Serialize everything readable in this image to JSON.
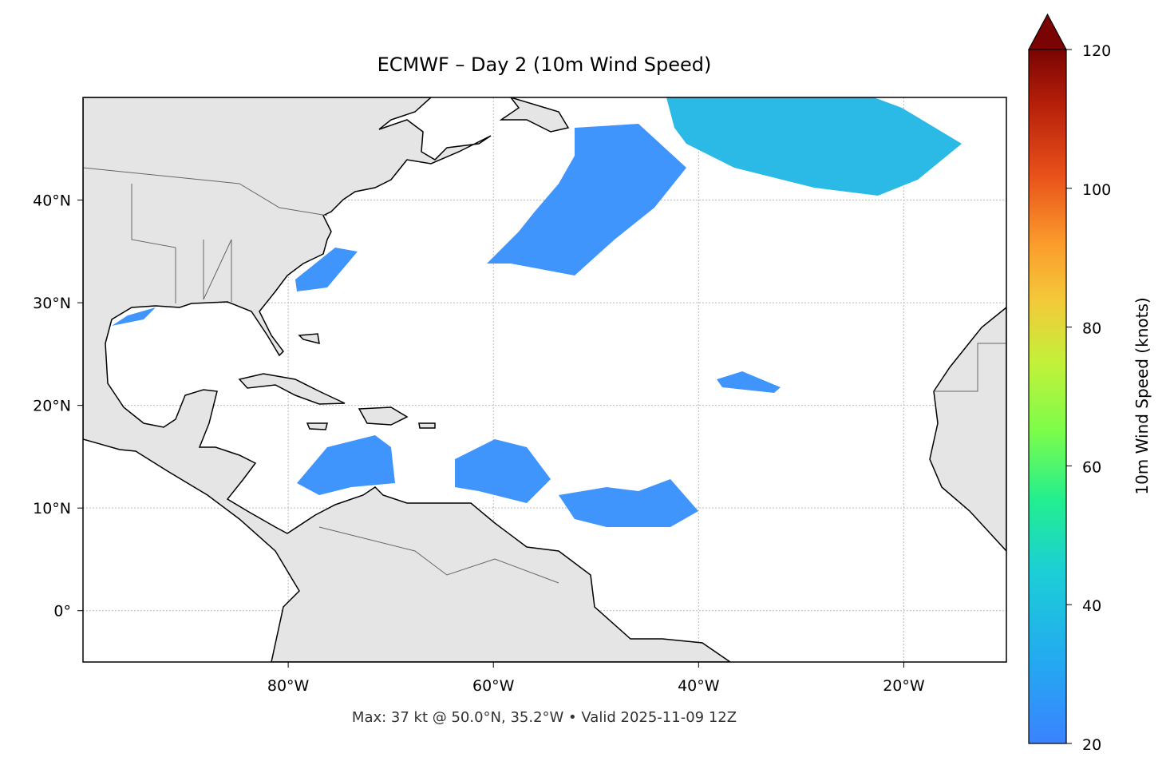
{
  "title": "ECMWF – Day 2 (10m Wind Speed)",
  "footer": "Max: 37 kt @ 50.0°N, 35.2°W • Valid 2025-11-09 12Z",
  "map": {
    "lonlim": [
      -100,
      -10
    ],
    "latlim": [
      -5,
      50
    ],
    "xticks": [
      {
        "value": -80,
        "label": "80°W"
      },
      {
        "value": -60,
        "label": "60°W"
      },
      {
        "value": -40,
        "label": "40°W"
      },
      {
        "value": -20,
        "label": "20°W"
      }
    ],
    "yticks": [
      {
        "value": 0,
        "label": "0°"
      },
      {
        "value": 10,
        "label": "10°N"
      },
      {
        "value": 20,
        "label": "20°N"
      },
      {
        "value": 30,
        "label": "30°N"
      },
      {
        "value": 40,
        "label": "40°N"
      }
    ],
    "grid": true
  },
  "colorbar": {
    "label": "10m Wind Speed (knots)",
    "lim": [
      20,
      120
    ],
    "ticks": [
      20,
      40,
      60,
      80,
      100,
      120
    ],
    "extend": "max"
  }
}
